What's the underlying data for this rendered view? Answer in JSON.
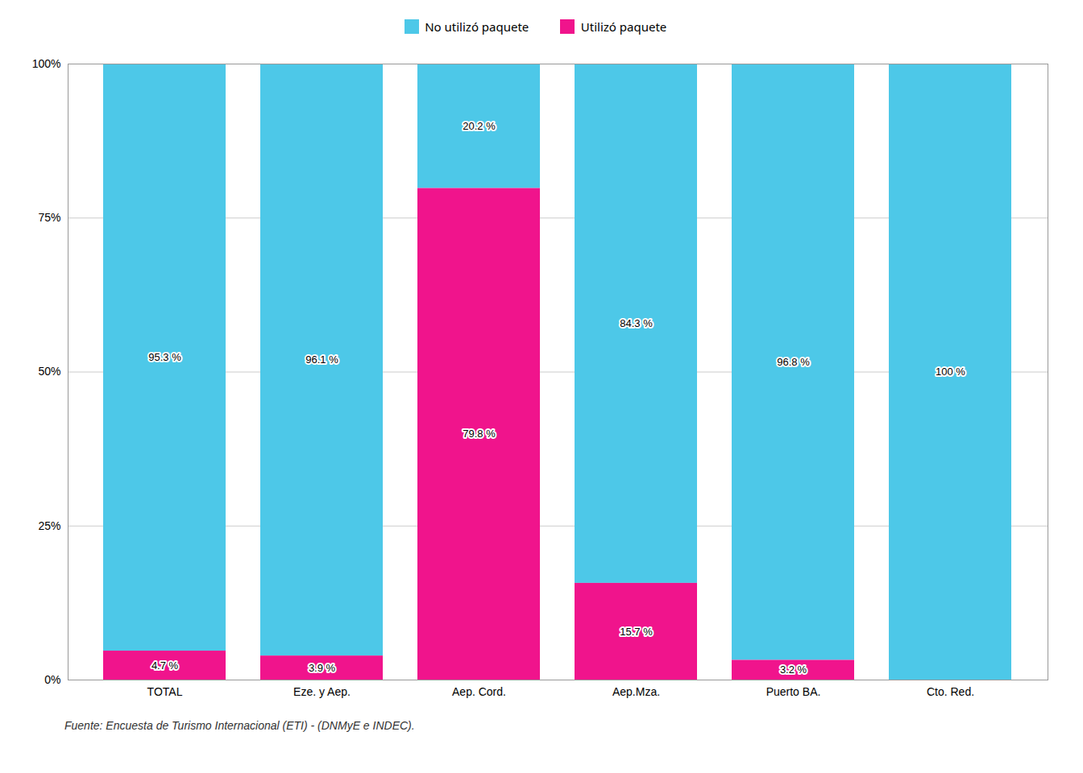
{
  "chart_data": {
    "type": "bar",
    "stacked": true,
    "categories": [
      "TOTAL",
      "Eze. y Aep.",
      "Aep. Cord.",
      "Aep.Mza.",
      "Puerto BA.",
      "Cto. Red."
    ],
    "series": [
      {
        "name": "No utilizó paquete",
        "color": "#4DC8E8",
        "values": [
          95.3,
          96.1,
          20.2,
          84.3,
          96.8,
          100.0
        ],
        "value_labels": [
          "95.3 %",
          "96.1 %",
          "20.2 %",
          "84.3 %",
          "96.8 %",
          "100 %"
        ]
      },
      {
        "name": "Utilizó paquete",
        "color": "#F0148C",
        "values": [
          4.7,
          3.9,
          79.8,
          15.7,
          3.2,
          0.0
        ],
        "value_labels": [
          "4.7 %",
          "3.9 %",
          "79.8 %",
          "15.7 %",
          "3.2 %",
          null
        ]
      }
    ],
    "ylim": [
      0,
      100
    ],
    "yticks": [
      {
        "value": 0,
        "label": "0%"
      },
      {
        "value": 25,
        "label": "25%"
      },
      {
        "value": 50,
        "label": "50%"
      },
      {
        "value": 75,
        "label": "75%"
      },
      {
        "value": 100,
        "label": "100%"
      }
    ],
    "grid": true,
    "legend": "top",
    "data_labels": true,
    "annotations": [
      "Fuente: Encuesta de Turismo Internacional (ETI) - (DNMyE e INDEC)."
    ]
  }
}
